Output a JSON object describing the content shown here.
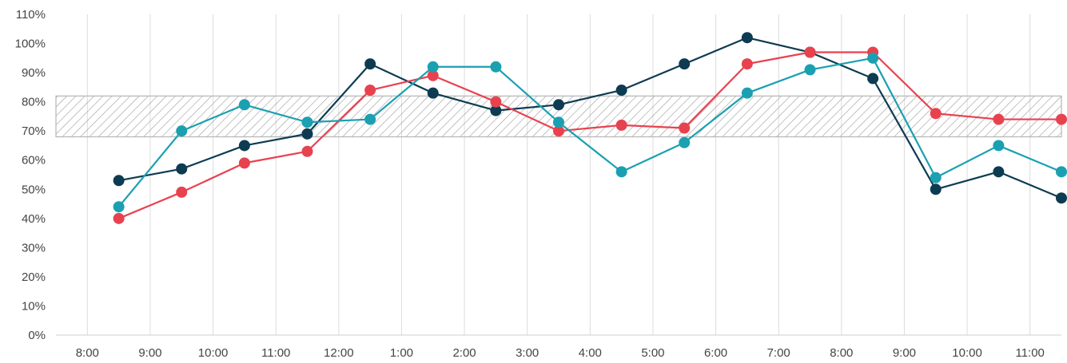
{
  "chart_data": {
    "type": "line",
    "title": "",
    "xlabel": "",
    "ylabel": "",
    "categories": [
      "8:00",
      "9:00",
      "10:00",
      "11:00",
      "12:00",
      "1:00",
      "2:00",
      "3:00",
      "4:00",
      "5:00",
      "6:00",
      "7:00",
      "8:00",
      "9:00",
      "10:00",
      "11:00"
    ],
    "x": [
      8.5,
      9.5,
      10.5,
      11.5,
      12.5,
      13.5,
      14.5,
      15.5,
      16.5,
      17.5,
      18.5,
      19.5,
      20.5,
      21.5,
      22.5,
      23.5
    ],
    "xlim": [
      7.5,
      23.5
    ],
    "ylim": [
      0,
      110
    ],
    "yticks": [
      "0%",
      "10%",
      "20%",
      "30%",
      "40%",
      "50%",
      "60%",
      "70%",
      "80%",
      "90%",
      "100%",
      "110%"
    ],
    "target_band": [
      68,
      82
    ],
    "grid": "vertical",
    "series": [
      {
        "color": "#0d3b52",
        "values": [
          53,
          57,
          65,
          69,
          93,
          83,
          77,
          79,
          84,
          93,
          102,
          97,
          88,
          50,
          56,
          47
        ]
      },
      {
        "color": "#e8424f",
        "values": [
          40,
          49,
          59,
          63,
          84,
          89,
          80,
          70,
          72,
          71,
          93,
          97,
          97,
          76,
          74,
          74
        ]
      },
      {
        "color": "#1aa0b1",
        "values": [
          44,
          70,
          79,
          73,
          74,
          92,
          92,
          73,
          56,
          66,
          83,
          91,
          95,
          54,
          65,
          56
        ]
      }
    ]
  }
}
